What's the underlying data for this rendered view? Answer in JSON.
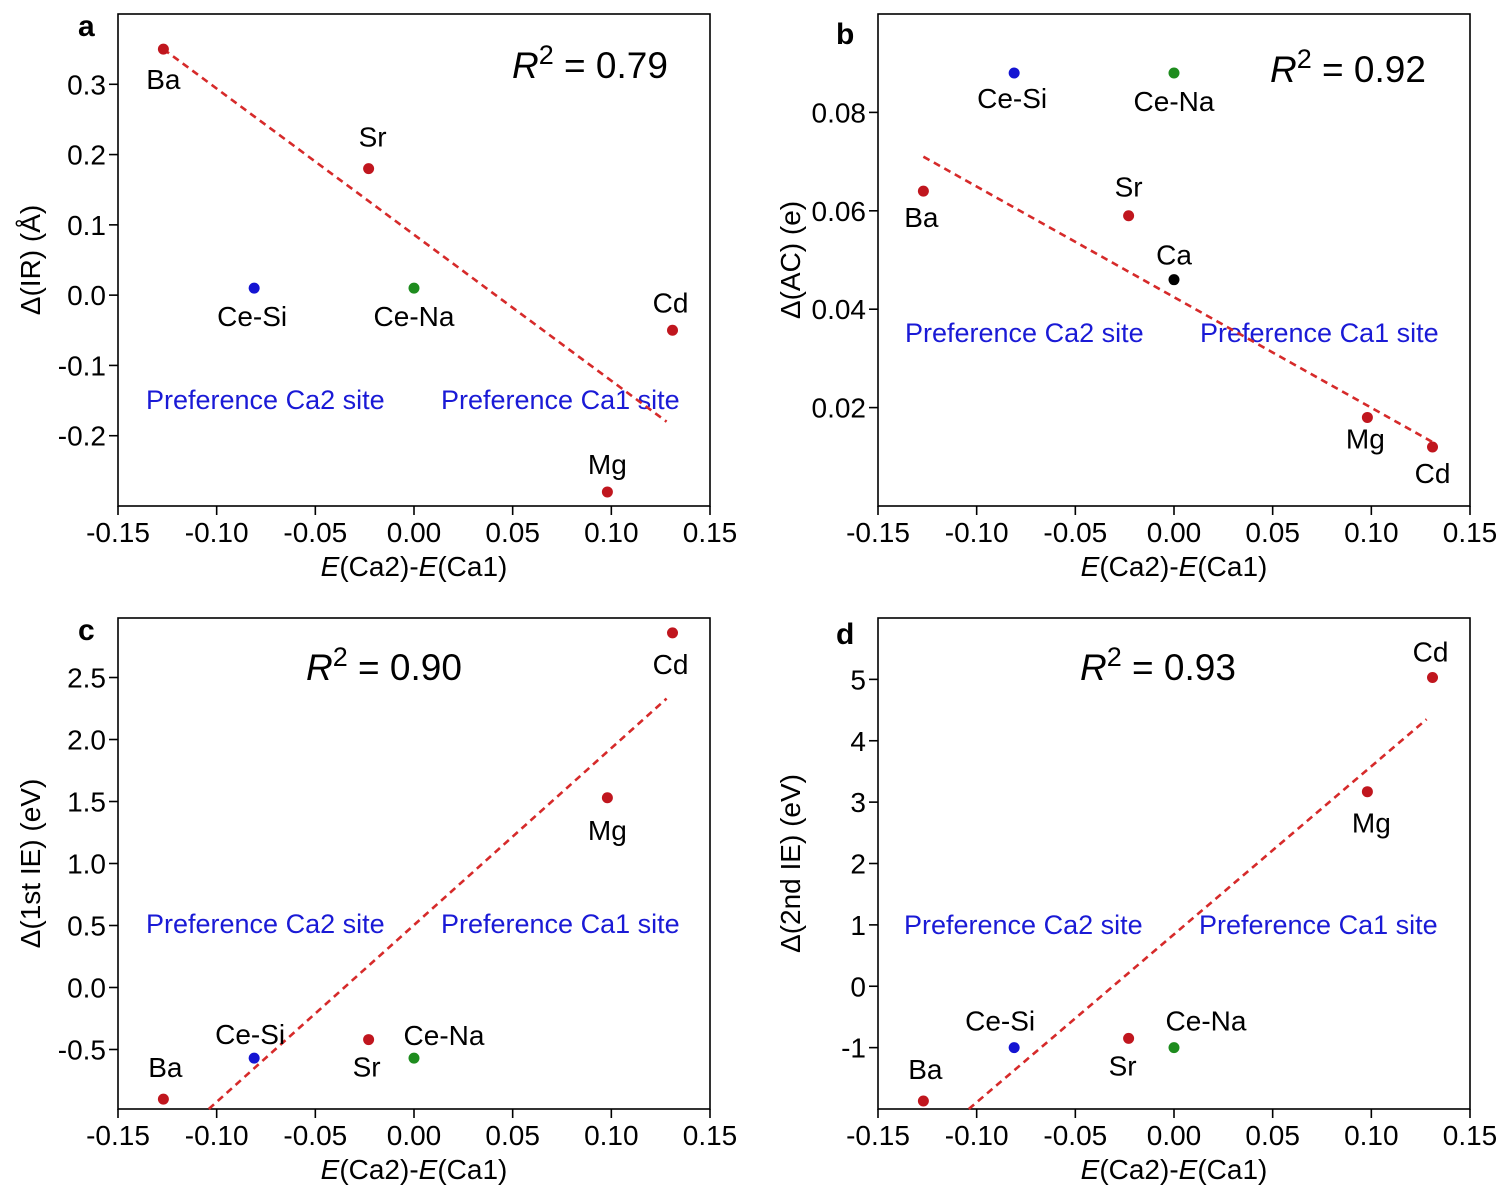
{
  "colors": {
    "red_point": "#c0161e",
    "blue_point": "#1414d2",
    "green_point": "#1e8c1e",
    "black_point": "#000000",
    "fit_line": "#d62a2a",
    "preference_text": "#1a1ad6"
  },
  "chart_data": [
    {
      "type": "scatter",
      "panel": "a",
      "r2_label": "R",
      "r2_value": "2",
      "r2_text": " = 0.79",
      "ylabel": "Δ(IR) (Å)",
      "xlabel_parts": [
        "E",
        "(Ca2)-",
        "E",
        "(Ca1)"
      ],
      "xlim": [
        -0.15,
        0.15
      ],
      "ylim": [
        -0.3,
        0.4
      ],
      "xticks": [
        -0.15,
        -0.1,
        -0.05,
        0.0,
        0.05,
        0.1,
        0.15
      ],
      "xtick_labels": [
        "-0.15",
        "-0.10",
        "-0.05",
        "0.00",
        "0.05",
        "0.10",
        "0.15"
      ],
      "yticks": [
        -0.2,
        -0.1,
        0.0,
        0.1,
        0.2,
        0.3
      ],
      "ytick_labels": [
        "-0.2",
        "-0.1",
        "0.0",
        "0.1",
        "0.2",
        "0.3"
      ],
      "preference_left": "Preference Ca2 site",
      "preference_right": "Preference Ca1 site",
      "fit_line": {
        "x": [
          -0.127,
          0.128
        ],
        "y": [
          0.35,
          -0.18
        ]
      },
      "points": [
        {
          "label": "Ba",
          "x": -0.127,
          "y": 0.35,
          "color": "red"
        },
        {
          "label": "Sr",
          "x": -0.023,
          "y": 0.18,
          "color": "red"
        },
        {
          "label": "Ce-Si",
          "x": -0.081,
          "y": 0.01,
          "color": "blue"
        },
        {
          "label": "Ce-Na",
          "x": 0.0,
          "y": 0.01,
          "color": "green"
        },
        {
          "label": "Cd",
          "x": 0.131,
          "y": -0.05,
          "color": "red"
        },
        {
          "label": "Mg",
          "x": 0.098,
          "y": -0.28,
          "color": "red"
        }
      ]
    },
    {
      "type": "scatter",
      "panel": "b",
      "r2_label": "R",
      "r2_value": "2",
      "r2_text": " = 0.92",
      "ylabel": "Δ(AC) (e)",
      "xlabel_parts": [
        "E",
        "(Ca2)-",
        "E",
        "(Ca1)"
      ],
      "xlim": [
        -0.15,
        0.15
      ],
      "ylim": [
        0.0,
        0.1
      ],
      "xticks": [
        -0.15,
        -0.1,
        -0.05,
        0.0,
        0.05,
        0.1,
        0.15
      ],
      "xtick_labels": [
        "-0.15",
        "-0.10",
        "-0.05",
        "0.00",
        "0.05",
        "0.10",
        "0.15"
      ],
      "yticks": [
        0.02,
        0.04,
        0.06,
        0.08
      ],
      "ytick_labels": [
        "0.02",
        "0.04",
        "0.06",
        "0.08"
      ],
      "preference_left": "Preference Ca2 site",
      "preference_right": "Preference Ca1 site",
      "fit_line": {
        "x": [
          -0.127,
          0.131
        ],
        "y": [
          0.071,
          0.013
        ]
      },
      "points": [
        {
          "label": "Ce-Si",
          "x": -0.081,
          "y": 0.088,
          "color": "blue"
        },
        {
          "label": "Ce-Na",
          "x": 0.0,
          "y": 0.088,
          "color": "green"
        },
        {
          "label": "Ba",
          "x": -0.127,
          "y": 0.064,
          "color": "red"
        },
        {
          "label": "Sr",
          "x": -0.023,
          "y": 0.059,
          "color": "red"
        },
        {
          "label": "Ca",
          "x": 0.0,
          "y": 0.046,
          "color": "black"
        },
        {
          "label": "Mg",
          "x": 0.098,
          "y": 0.018,
          "color": "red"
        },
        {
          "label": "Cd",
          "x": 0.131,
          "y": 0.012,
          "color": "red"
        }
      ]
    },
    {
      "type": "scatter",
      "panel": "c",
      "r2_label": "R",
      "r2_value": "2",
      "r2_text": " = 0.90",
      "ylabel": "Δ(1st IE) (eV)",
      "xlabel_parts": [
        "E",
        "(Ca2)-",
        "E",
        "(Ca1)"
      ],
      "xlim": [
        -0.15,
        0.15
      ],
      "ylim": [
        -0.98,
        2.98
      ],
      "xticks": [
        -0.15,
        -0.1,
        -0.05,
        0.0,
        0.05,
        0.1,
        0.15
      ],
      "xtick_labels": [
        "-0.15",
        "-0.10",
        "-0.05",
        "0.00",
        "0.05",
        "0.10",
        "0.15"
      ],
      "yticks": [
        -0.5,
        0.0,
        0.5,
        1.0,
        1.5,
        2.0,
        2.5
      ],
      "ytick_labels": [
        "-0.5",
        "0.0",
        "0.5",
        "1.0",
        "1.5",
        "2.0",
        "2.5"
      ],
      "preference_left": "Preference Ca2 site",
      "preference_right": "Preference Ca1 site",
      "fit_line": {
        "x": [
          -0.104,
          0.128
        ],
        "y": [
          -0.98,
          2.33
        ]
      },
      "points": [
        {
          "label": "Cd",
          "x": 0.131,
          "y": 2.86,
          "color": "red"
        },
        {
          "label": "Mg",
          "x": 0.098,
          "y": 1.53,
          "color": "red"
        },
        {
          "label": "Ce-Si",
          "x": -0.081,
          "y": -0.57,
          "color": "blue"
        },
        {
          "label": "Ce-Na",
          "x": 0.0,
          "y": -0.57,
          "color": "green"
        },
        {
          "label": "Sr",
          "x": -0.023,
          "y": -0.42,
          "color": "red"
        },
        {
          "label": "Ba",
          "x": -0.127,
          "y": -0.9,
          "color": "red"
        }
      ]
    },
    {
      "type": "scatter",
      "panel": "d",
      "r2_label": "R",
      "r2_value": "2",
      "r2_text": " = 0.93",
      "ylabel": "Δ(2nd IE) (eV)",
      "xlabel_parts": [
        "E",
        "(Ca2)-",
        "E",
        "(Ca1)"
      ],
      "xlim": [
        -0.15,
        0.15
      ],
      "ylim": [
        -2.0,
        6.0
      ],
      "xticks": [
        -0.15,
        -0.1,
        -0.05,
        0.0,
        0.05,
        0.1,
        0.15
      ],
      "xtick_labels": [
        "-0.15",
        "-0.10",
        "-0.05",
        "0.00",
        "0.05",
        "0.10",
        "0.15"
      ],
      "yticks": [
        -1,
        0,
        1,
        2,
        3,
        4,
        5
      ],
      "ytick_labels": [
        "-1",
        "0",
        "1",
        "2",
        "3",
        "4",
        "5"
      ],
      "preference_left": "Preference Ca2 site",
      "preference_right": "Preference Ca1 site",
      "fit_line": {
        "x": [
          -0.104,
          0.128
        ],
        "y": [
          -2.0,
          4.35
        ]
      },
      "points": [
        {
          "label": "Cd",
          "x": 0.131,
          "y": 5.03,
          "color": "red"
        },
        {
          "label": "Mg",
          "x": 0.098,
          "y": 3.17,
          "color": "red"
        },
        {
          "label": "Ce-Si",
          "x": -0.081,
          "y": -1.0,
          "color": "blue"
        },
        {
          "label": "Ce-Na",
          "x": 0.0,
          "y": -1.0,
          "color": "green"
        },
        {
          "label": "Sr",
          "x": -0.023,
          "y": -0.85,
          "color": "red"
        },
        {
          "label": "Ba",
          "x": -0.127,
          "y": -1.87,
          "color": "red"
        }
      ]
    }
  ]
}
